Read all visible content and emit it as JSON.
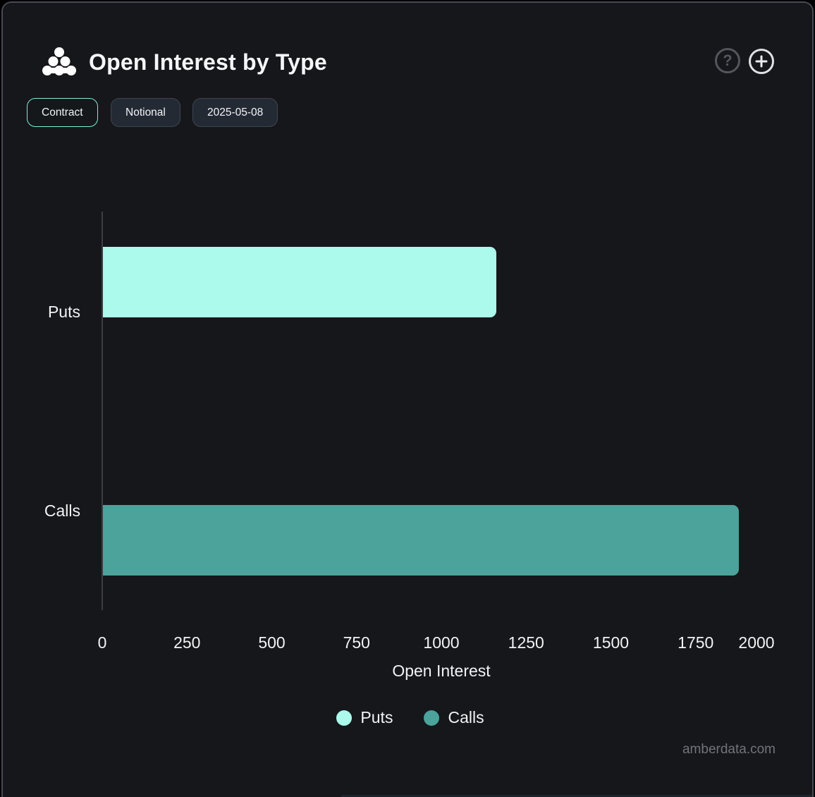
{
  "header": {
    "title": "Open Interest by Type",
    "help_label": "?",
    "logo_name": "amberdata-logo"
  },
  "toolbar": {
    "buttons": [
      {
        "label": "Contract",
        "active": true
      },
      {
        "label": "Notional",
        "active": false
      },
      {
        "label": "2025-05-08",
        "active": false
      }
    ]
  },
  "chart_data": {
    "type": "bar",
    "orientation": "horizontal",
    "title": "Open Interest by Type",
    "categories": [
      "Puts",
      "Calls"
    ],
    "values": [
      1160,
      1875
    ],
    "colors": [
      "#abfaec",
      "#4ba39b"
    ],
    "xlabel": "Open Interest",
    "ylabel": "",
    "xticks": [
      0,
      250,
      500,
      750,
      1000,
      1250,
      1500,
      1750,
      2000
    ],
    "xlim": [
      0,
      2000
    ],
    "grid": false,
    "legend_position": "bottom",
    "legend": [
      {
        "label": "Puts",
        "color": "#abfaec"
      },
      {
        "label": "Calls",
        "color": "#4ba39b"
      }
    ]
  },
  "footer": {
    "watermark": "amberdata.com"
  },
  "colors": {
    "card_background": "#16171a",
    "card_border": "#464b54",
    "accent_active_border": "#7deed6",
    "puts": "#abfaec",
    "calls": "#4ba39b",
    "text": "#f2f3f5",
    "muted_text": "#70747a"
  }
}
